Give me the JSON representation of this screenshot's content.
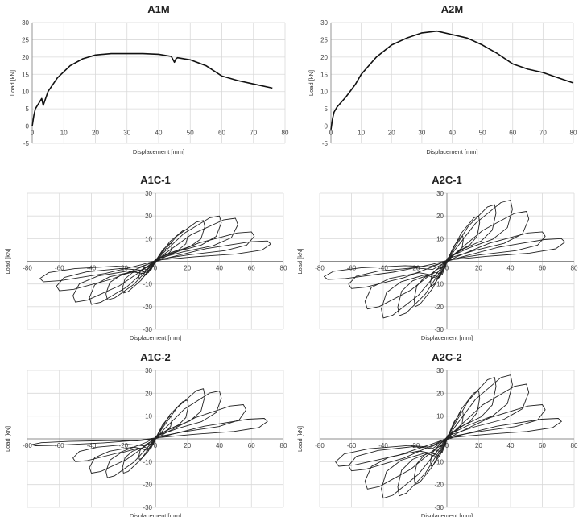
{
  "chart_data": [
    {
      "id": "A1M",
      "type": "line",
      "title": "A1M",
      "xlabel": "Displacement [mm]",
      "ylabel": "Load [kN]",
      "xlim": [
        0,
        80
      ],
      "ylim": [
        -5,
        30
      ],
      "grid": true,
      "xticks": [
        0,
        10,
        20,
        30,
        40,
        50,
        60,
        70,
        80
      ],
      "yticks": [
        -5,
        0,
        5,
        10,
        15,
        20,
        25,
        30
      ],
      "x": [
        0,
        0.5,
        1,
        2,
        3,
        3.5,
        5,
        8,
        12,
        16,
        20,
        25,
        30,
        35,
        40,
        44,
        45,
        45.5,
        46,
        50,
        55,
        60,
        65,
        70,
        76
      ],
      "y": [
        0,
        3,
        5,
        6.5,
        8,
        6,
        10,
        14,
        17.5,
        19.5,
        20.6,
        21,
        21,
        21,
        20.8,
        20.2,
        18.5,
        19.5,
        19.8,
        19.2,
        17.5,
        14.5,
        13.2,
        12.2,
        11
      ]
    },
    {
      "id": "A2M",
      "type": "line",
      "title": "A2M",
      "xlabel": "Displacement [mm]",
      "ylabel": "Load [kN]",
      "xlim": [
        0,
        80
      ],
      "ylim": [
        -5,
        30
      ],
      "grid": true,
      "xticks": [
        0,
        10,
        20,
        30,
        40,
        50,
        60,
        70,
        80
      ],
      "yticks": [
        -5,
        0,
        5,
        10,
        15,
        20,
        25,
        30
      ],
      "x": [
        0,
        0.5,
        1,
        2,
        3,
        5,
        8,
        10,
        15,
        20,
        25,
        30,
        35,
        40,
        45,
        50,
        55,
        60,
        65,
        70,
        75,
        80
      ],
      "y": [
        -1,
        2,
        4,
        5.5,
        6.5,
        8.5,
        12,
        15,
        20,
        23.5,
        25.5,
        27,
        27.5,
        26.5,
        25.5,
        23.5,
        21,
        18,
        16.5,
        15.5,
        14,
        12.5
      ]
    },
    {
      "id": "A1C-1",
      "type": "line",
      "title": "A1C-1",
      "xlabel": "Displacement [mm]",
      "ylabel": "Load [kN]",
      "xlim": [
        -80,
        80
      ],
      "ylim": [
        -30,
        30
      ],
      "grid": true,
      "xticks": [
        -80,
        -60,
        -40,
        -20,
        0,
        20,
        40,
        60,
        80
      ],
      "yticks": [
        -30,
        -20,
        -10,
        0,
        10,
        20,
        30
      ],
      "xticklabels": [
        "-80",
        "-60",
        "-40",
        "-20",
        "0",
        "20",
        "40",
        "60",
        "80"
      ],
      "yticklabels": [
        "-30",
        "-20",
        "-10",
        "",
        "10",
        "20",
        "30"
      ],
      "cycles": [
        {
          "amp": 10,
          "peak": 8,
          "neg_amp": 10,
          "neg_peak": 8
        },
        {
          "amp": 20,
          "peak": 14,
          "neg_amp": 20,
          "neg_peak": 14
        },
        {
          "amp": 30,
          "peak": 18,
          "neg_amp": 30,
          "neg_peak": 17
        },
        {
          "amp": 40,
          "peak": 20,
          "neg_amp": 40,
          "neg_peak": 19
        },
        {
          "amp": 50,
          "peak": 19,
          "neg_amp": 50,
          "neg_peak": 18
        },
        {
          "amp": 60,
          "peak": 13,
          "neg_amp": 60,
          "neg_peak": 13
        },
        {
          "amp": 70,
          "peak": 9,
          "neg_amp": 70,
          "neg_peak": 9
        }
      ]
    },
    {
      "id": "A2C-1",
      "type": "line",
      "title": "A2C-1",
      "xlabel": "Displacement [mm]",
      "ylabel": "Load [kN]",
      "xlim": [
        -80,
        80
      ],
      "ylim": [
        -30,
        30
      ],
      "grid": true,
      "xticks": [
        -80,
        -60,
        -40,
        -20,
        0,
        20,
        40,
        60,
        80
      ],
      "yticks": [
        -30,
        -20,
        -10,
        0,
        10,
        20,
        30
      ],
      "xticklabels": [
        "-80",
        "-60",
        "-40",
        "-20",
        "0",
        "20",
        "40",
        "60",
        "80"
      ],
      "yticklabels": [
        "-30",
        "-20",
        "-10",
        "",
        "10",
        "20",
        "30"
      ],
      "cycles": [
        {
          "amp": 10,
          "peak": 11,
          "neg_amp": 10,
          "neg_peak": 11
        },
        {
          "amp": 20,
          "peak": 20,
          "neg_amp": 20,
          "neg_peak": 20
        },
        {
          "amp": 30,
          "peak": 25,
          "neg_amp": 30,
          "neg_peak": 24
        },
        {
          "amp": 40,
          "peak": 27,
          "neg_amp": 40,
          "neg_peak": 25
        },
        {
          "amp": 50,
          "peak": 22,
          "neg_amp": 50,
          "neg_peak": 21
        },
        {
          "amp": 60,
          "peak": 13,
          "neg_amp": 60,
          "neg_peak": 12
        },
        {
          "amp": 72,
          "peak": 10,
          "neg_amp": 75,
          "neg_peak": 8
        }
      ]
    },
    {
      "id": "A1C-2",
      "type": "line",
      "title": "A1C-2",
      "xlabel": "Displacement [mm]",
      "ylabel": "Load [kN]",
      "xlim": [
        -80,
        80
      ],
      "ylim": [
        -30,
        30
      ],
      "grid": true,
      "xticks": [
        -80,
        -60,
        -40,
        -20,
        0,
        20,
        40,
        60,
        80
      ],
      "yticks": [
        -30,
        -20,
        -10,
        0,
        10,
        20,
        30
      ],
      "xticklabels": [
        "-80",
        "-60",
        "-40",
        "-20",
        "0",
        "20",
        "40",
        "60",
        "80"
      ],
      "yticklabels": [
        "-30",
        "-20",
        "-10",
        "",
        "10",
        "20",
        "30"
      ],
      "cycles": [
        {
          "amp": 10,
          "peak": 10,
          "neg_amp": 10,
          "neg_peak": 9
        },
        {
          "amp": 20,
          "peak": 17,
          "neg_amp": 20,
          "neg_peak": 15
        },
        {
          "amp": 30,
          "peak": 22,
          "neg_amp": 30,
          "neg_peak": 17
        },
        {
          "amp": 40,
          "peak": 21,
          "neg_amp": 40,
          "neg_peak": 15
        },
        {
          "amp": 55,
          "peak": 15,
          "neg_amp": 50,
          "neg_peak": 10
        },
        {
          "amp": 68,
          "peak": 9,
          "neg_amp": 75,
          "neg_peak": 3
        }
      ]
    },
    {
      "id": "A2C-2",
      "type": "line",
      "title": "A2C-2",
      "xlabel": "Displacement [mm]",
      "ylabel": "Load [kN]",
      "xlim": [
        -80,
        80
      ],
      "ylim": [
        -30,
        30
      ],
      "grid": true,
      "xticks": [
        -80,
        -60,
        -40,
        -20,
        0,
        20,
        40,
        60,
        80
      ],
      "yticks": [
        -30,
        -20,
        -10,
        0,
        10,
        20,
        30
      ],
      "xticklabels": [
        "-80",
        "-60",
        "-40",
        "-20",
        "0",
        "20",
        "40",
        "60",
        "80"
      ],
      "yticklabels": [
        "-30",
        "-20",
        "-10",
        "",
        "10",
        "20",
        "30"
      ],
      "cycles": [
        {
          "amp": 10,
          "peak": 12,
          "neg_amp": 10,
          "neg_peak": 12
        },
        {
          "amp": 20,
          "peak": 21,
          "neg_amp": 20,
          "neg_peak": 20
        },
        {
          "amp": 30,
          "peak": 27,
          "neg_amp": 30,
          "neg_peak": 25
        },
        {
          "amp": 40,
          "peak": 28,
          "neg_amp": 40,
          "neg_peak": 26
        },
        {
          "amp": 50,
          "peak": 24,
          "neg_amp": 50,
          "neg_peak": 22
        },
        {
          "amp": 60,
          "peak": 15,
          "neg_amp": 60,
          "neg_peak": 14
        },
        {
          "amp": 70,
          "peak": 9,
          "neg_amp": 68,
          "neg_peak": 12
        }
      ]
    }
  ]
}
